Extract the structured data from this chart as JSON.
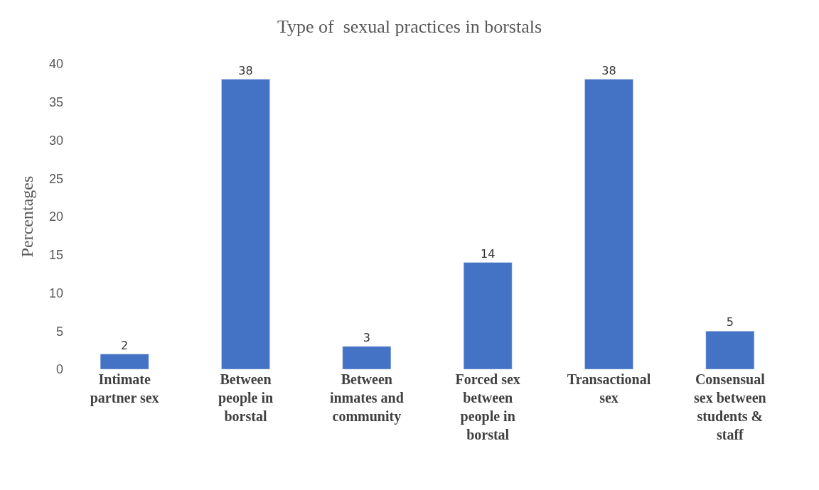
{
  "chart_data": {
    "type": "bar",
    "title": "Type of  sexual practices in borstals",
    "ylabel": "Percentages",
    "categories": [
      "Intimate partner sex",
      "Between people in borstal",
      "Between inmates and community",
      "Forced sex between people in borstal",
      "Transactional sex",
      "Consensual sex between students & staff"
    ],
    "values": [
      2,
      38,
      3,
      14,
      38,
      5
    ],
    "color": "#4472c4",
    "ylim": [
      0,
      40
    ],
    "yticks": [
      0,
      5,
      10,
      15,
      20,
      25,
      30,
      35,
      40
    ],
    "data_labels": true
  }
}
